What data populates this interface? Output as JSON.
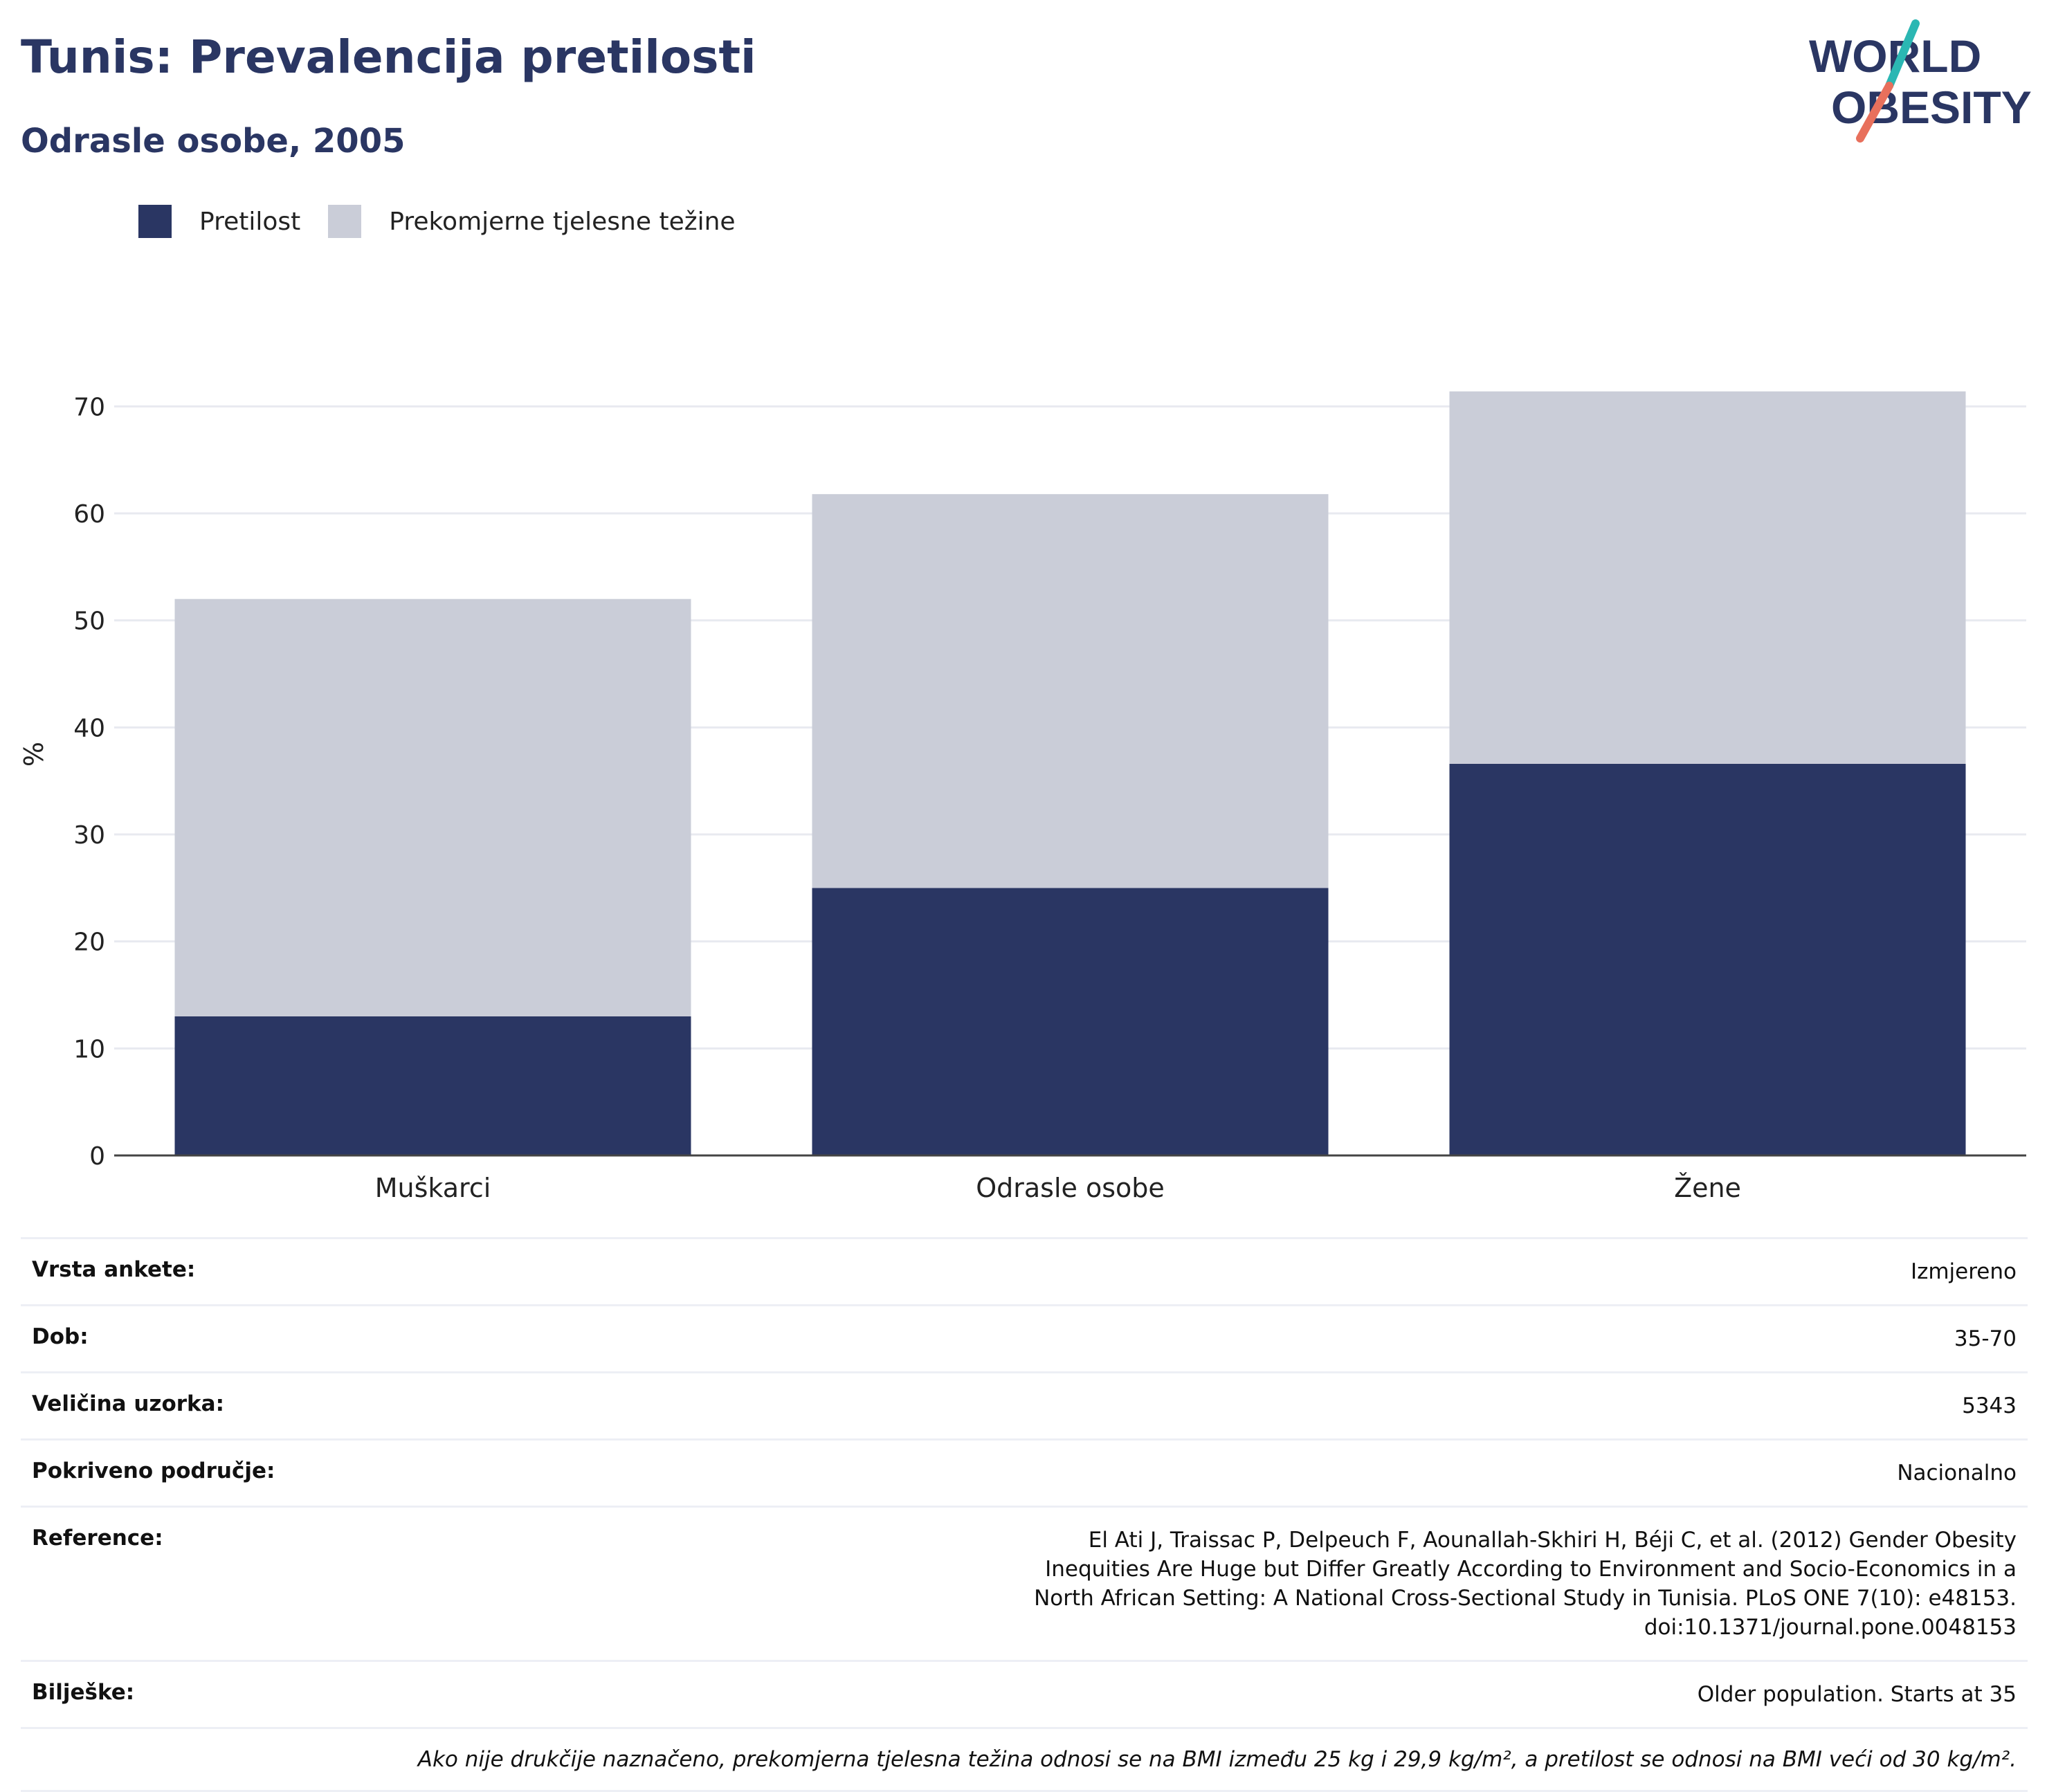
{
  "title": "Tunis: Prevalencija pretilosti",
  "subtitle": "Odrasle osobe, 2005",
  "logo": {
    "line1": "WORLD",
    "line2": "OBESITY"
  },
  "colors": {
    "obesity": "#2a3663",
    "overweight": "#cacdd8",
    "text": "#2a3663",
    "accent_teal": "#2bb7b3",
    "accent_coral": "#e8705c"
  },
  "legend": [
    {
      "label": "Pretilost",
      "color": "#2a3663"
    },
    {
      "label": "Prekomjerne tjelesne težine",
      "color": "#cacdd8"
    }
  ],
  "chart_data": {
    "type": "bar",
    "stacked": true,
    "categories": [
      "Muškarci",
      "Odrasle osobe",
      "Žene"
    ],
    "series": [
      {
        "name": "Pretilost",
        "values": [
          13.0,
          25.0,
          36.6
        ]
      },
      {
        "name": "Prekomjerne tjelesne težine",
        "values": [
          39.0,
          36.8,
          34.8
        ]
      }
    ],
    "ylabel": "%",
    "ylim": [
      0,
      75
    ],
    "yticks": [
      0,
      10,
      20,
      30,
      40,
      50,
      60,
      70
    ],
    "grid": true,
    "legend_position": "top-left"
  },
  "meta": [
    {
      "key": "Vrsta ankete:",
      "value": "Izmjereno"
    },
    {
      "key": "Dob:",
      "value": "35-70"
    },
    {
      "key": "Veličina uzorka:",
      "value": "5343"
    },
    {
      "key": "Pokriveno područje:",
      "value": "Nacionalno"
    },
    {
      "key": "Reference:",
      "value": "El Ati J, Traissac P, Delpeuch F, Aounallah-Skhiri H, Béji C, et al. (2012) Gender Obesity Inequities Are Huge but Differ Greatly According to Environment and Socio-Economics in a North African Setting: A National Cross-Sectional Study in Tunisia. PLoS ONE 7(10): e48153. doi:10.1371/journal.pone.0048153"
    },
    {
      "key": "Bilješke:",
      "value": "Older population. Starts at 35"
    }
  ],
  "footnote": "Ako nije drukčije naznačeno, prekomjerna tjelesna težina odnosi se na BMI između 25 kg i 29,9 kg/m², a pretilost se odnosi na BMI veći od 30 kg/m²."
}
